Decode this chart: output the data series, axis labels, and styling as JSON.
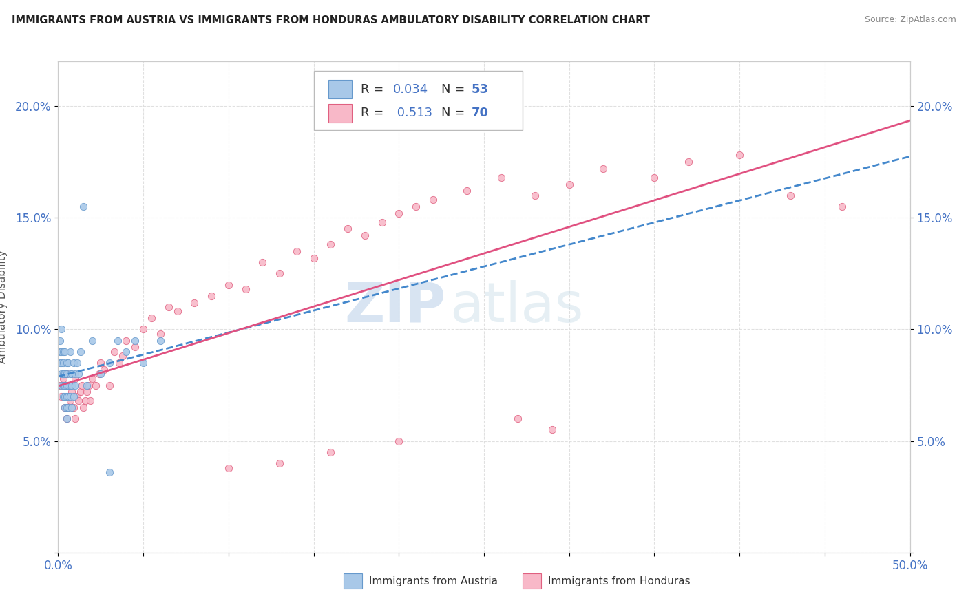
{
  "title": "IMMIGRANTS FROM AUSTRIA VS IMMIGRANTS FROM HONDURAS AMBULATORY DISABILITY CORRELATION CHART",
  "source": "Source: ZipAtlas.com",
  "ylabel": "Ambulatory Disability",
  "xlim": [
    0.0,
    0.5
  ],
  "ylim": [
    0.0,
    0.22
  ],
  "xtick_vals": [
    0.0,
    0.05,
    0.1,
    0.15,
    0.2,
    0.25,
    0.3,
    0.35,
    0.4,
    0.45,
    0.5
  ],
  "xtick_labels": [
    "0.0%",
    "",
    "",
    "",
    "",
    "",
    "",
    "",
    "",
    "",
    "50.0%"
  ],
  "ytick_vals": [
    0.0,
    0.05,
    0.1,
    0.15,
    0.2
  ],
  "ytick_labels": [
    "",
    "5.0%",
    "10.0%",
    "15.0%",
    "20.0%"
  ],
  "austria_color": "#a8c8e8",
  "austria_edge_color": "#6699cc",
  "honduras_color": "#f8b8c8",
  "honduras_edge_color": "#e06080",
  "austria_line_color": "#4488cc",
  "honduras_line_color": "#e05080",
  "legend_austria_R": "0.034",
  "legend_austria_N": "53",
  "legend_honduras_R": "0.513",
  "legend_honduras_N": "70",
  "austria_x": [
    0.001,
    0.001,
    0.001,
    0.002,
    0.002,
    0.002,
    0.002,
    0.002,
    0.003,
    0.003,
    0.003,
    0.003,
    0.003,
    0.004,
    0.004,
    0.004,
    0.004,
    0.004,
    0.005,
    0.005,
    0.005,
    0.005,
    0.005,
    0.005,
    0.006,
    0.006,
    0.006,
    0.006,
    0.007,
    0.007,
    0.007,
    0.007,
    0.008,
    0.008,
    0.008,
    0.009,
    0.009,
    0.01,
    0.01,
    0.011,
    0.012,
    0.013,
    0.015,
    0.017,
    0.02,
    0.025,
    0.03,
    0.035,
    0.04,
    0.045,
    0.05,
    0.06,
    0.03
  ],
  "austria_y": [
    0.085,
    0.09,
    0.095,
    0.075,
    0.08,
    0.085,
    0.09,
    0.1,
    0.07,
    0.075,
    0.08,
    0.085,
    0.09,
    0.065,
    0.07,
    0.075,
    0.08,
    0.09,
    0.06,
    0.065,
    0.07,
    0.075,
    0.08,
    0.085,
    0.065,
    0.07,
    0.075,
    0.085,
    0.07,
    0.075,
    0.08,
    0.09,
    0.065,
    0.075,
    0.08,
    0.07,
    0.085,
    0.075,
    0.08,
    0.085,
    0.08,
    0.09,
    0.155,
    0.075,
    0.095,
    0.08,
    0.085,
    0.095,
    0.09,
    0.095,
    0.085,
    0.095,
    0.036
  ],
  "honduras_x": [
    0.001,
    0.002,
    0.003,
    0.004,
    0.004,
    0.005,
    0.005,
    0.006,
    0.006,
    0.007,
    0.008,
    0.009,
    0.01,
    0.01,
    0.011,
    0.012,
    0.013,
    0.014,
    0.015,
    0.016,
    0.017,
    0.018,
    0.019,
    0.02,
    0.022,
    0.024,
    0.025,
    0.027,
    0.03,
    0.033,
    0.036,
    0.038,
    0.04,
    0.045,
    0.05,
    0.055,
    0.06,
    0.065,
    0.07,
    0.08,
    0.09,
    0.1,
    0.11,
    0.12,
    0.13,
    0.14,
    0.15,
    0.16,
    0.17,
    0.18,
    0.19,
    0.2,
    0.21,
    0.22,
    0.24,
    0.26,
    0.28,
    0.3,
    0.32,
    0.35,
    0.37,
    0.4,
    0.43,
    0.46,
    0.27,
    0.29,
    0.2,
    0.16,
    0.13,
    0.1
  ],
  "honduras_y": [
    0.075,
    0.07,
    0.078,
    0.065,
    0.075,
    0.06,
    0.08,
    0.065,
    0.075,
    0.068,
    0.072,
    0.065,
    0.06,
    0.078,
    0.07,
    0.068,
    0.072,
    0.075,
    0.065,
    0.068,
    0.072,
    0.075,
    0.068,
    0.078,
    0.075,
    0.08,
    0.085,
    0.082,
    0.075,
    0.09,
    0.085,
    0.088,
    0.095,
    0.092,
    0.1,
    0.105,
    0.098,
    0.11,
    0.108,
    0.112,
    0.115,
    0.12,
    0.118,
    0.13,
    0.125,
    0.135,
    0.132,
    0.138,
    0.145,
    0.142,
    0.148,
    0.152,
    0.155,
    0.158,
    0.162,
    0.168,
    0.16,
    0.165,
    0.172,
    0.168,
    0.175,
    0.178,
    0.16,
    0.155,
    0.06,
    0.055,
    0.05,
    0.045,
    0.04,
    0.038
  ],
  "watermark_zip": "ZIP",
  "watermark_atlas": "atlas",
  "background_color": "#ffffff",
  "grid_color": "#dddddd",
  "accent_color": "#4472c4"
}
